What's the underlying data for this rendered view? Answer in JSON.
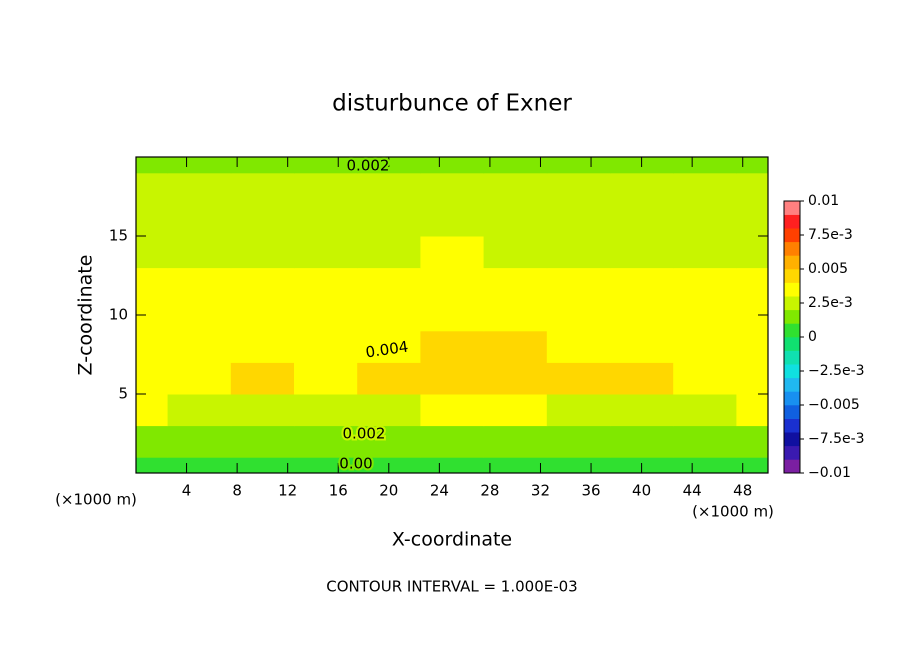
{
  "chart_data": {
    "type": "contour",
    "title": "disturbunce of Exner",
    "xlabel": "X-coordinate",
    "ylabel": "Z-coordinate",
    "x_unit_label": "(×1000 m)",
    "footer": "CONTOUR INTERVAL = 1.000E-03",
    "contour_labels": [
      "0.002",
      "0.004",
      "0.002",
      "0.00"
    ],
    "xlim": [
      0,
      50
    ],
    "ylim": [
      0,
      20
    ],
    "xticks": [
      4,
      8,
      12,
      16,
      20,
      24,
      28,
      32,
      36,
      40,
      44,
      48
    ],
    "yticks": [
      5,
      10,
      15
    ],
    "x": [
      0,
      5,
      10,
      15,
      20,
      25,
      30,
      35,
      40,
      45,
      50
    ],
    "y": [
      0,
      2,
      4,
      6,
      8,
      10,
      12,
      14,
      16,
      18,
      20
    ],
    "z": [
      [
        0.0005,
        0.0005,
        0.0005,
        0.0005,
        0.0004,
        0.0005,
        0.0005,
        0.0005,
        0.0005,
        0.0005,
        0.0005
      ],
      [
        0.0018,
        0.0017,
        0.0017,
        0.0018,
        0.0014,
        0.0017,
        0.0016,
        0.0017,
        0.0016,
        0.0016,
        0.0018
      ],
      [
        0.003,
        0.0029,
        0.0029,
        0.0029,
        0.0028,
        0.003,
        0.003,
        0.0029,
        0.0029,
        0.0029,
        0.003
      ],
      [
        0.0033,
        0.0036,
        0.0041,
        0.0036,
        0.0042,
        0.0043,
        0.0043,
        0.0043,
        0.0042,
        0.0036,
        0.0033
      ],
      [
        0.0032,
        0.0035,
        0.0037,
        0.0037,
        0.0039,
        0.004,
        0.0041,
        0.0039,
        0.0037,
        0.0035,
        0.0032
      ],
      [
        0.0031,
        0.0033,
        0.0034,
        0.0034,
        0.0035,
        0.0035,
        0.0035,
        0.0035,
        0.0034,
        0.0033,
        0.0031
      ],
      [
        0.003,
        0.003,
        0.0031,
        0.0032,
        0.0033,
        0.0033,
        0.0033,
        0.0032,
        0.0031,
        0.003,
        0.003
      ],
      [
        0.0027,
        0.0028,
        0.0028,
        0.0029,
        0.0029,
        0.003,
        0.0029,
        0.0029,
        0.0028,
        0.0028,
        0.0027
      ],
      [
        0.0026,
        0.0026,
        0.0026,
        0.0026,
        0.0027,
        0.0027,
        0.0027,
        0.0026,
        0.0026,
        0.0026,
        0.0026
      ],
      [
        0.0023,
        0.0023,
        0.0023,
        0.0023,
        0.0023,
        0.0023,
        0.0023,
        0.0023,
        0.0023,
        0.0023,
        0.0023
      ],
      [
        0.0019,
        0.0019,
        0.0019,
        0.0019,
        0.0019,
        0.0019,
        0.0019,
        0.0019,
        0.0019,
        0.0019,
        0.0019
      ]
    ],
    "clim": [
      -0.01,
      0.01
    ],
    "colors": [
      "#7b1fa2",
      "#3a1ab0",
      "#1010a0",
      "#1a30d0",
      "#1060e0",
      "#1890f0",
      "#20b8f0",
      "#10e0e0",
      "#10e0b0",
      "#10e070",
      "#30e030",
      "#80e800",
      "#c8f500",
      "#ffff00",
      "#ffd700",
      "#ffb000",
      "#ff8000",
      "#ff4000",
      "#ff2020",
      "#ff8080"
    ],
    "cticks": [
      {
        "value": -0.01,
        "label": "−0.01"
      },
      {
        "value": -0.0075,
        "label": "−7.5e-3"
      },
      {
        "value": -0.005,
        "label": "−0.005"
      },
      {
        "value": -0.0025,
        "label": "−2.5e-3"
      },
      0,
      {
        "value": 0.0025,
        "label": "2.5e-3"
      },
      0.005,
      {
        "value": 0.0075,
        "label": "7.5e-3"
      },
      0.01
    ]
  }
}
